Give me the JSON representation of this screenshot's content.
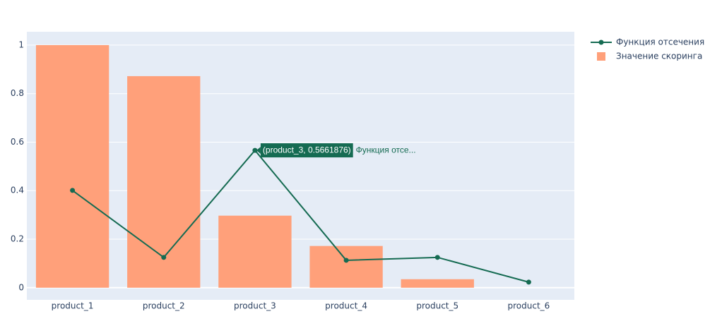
{
  "chart_data": {
    "type": "bar_line",
    "categories": [
      "product_1",
      "product_2",
      "product_3",
      "product_4",
      "product_5",
      "product_6"
    ],
    "series": [
      {
        "name": "Функция отсечения",
        "type": "line",
        "color": "#156b52",
        "values": [
          0.401,
          0.125,
          0.5661876,
          0.113,
          0.125,
          0.023
        ]
      },
      {
        "name": "Значение скоринга",
        "type": "bar",
        "color": "#ffa07a",
        "values": [
          1.0,
          0.872,
          0.297,
          0.172,
          0.035,
          0.0
        ]
      }
    ],
    "ylim": [
      -0.05,
      1.055
    ],
    "yticks": [
      0,
      0.2,
      0.4,
      0.6,
      0.8,
      1
    ],
    "grid": true,
    "hover": {
      "label": "(product_3, 0.5661876)",
      "name": "Функция отсе..."
    }
  }
}
